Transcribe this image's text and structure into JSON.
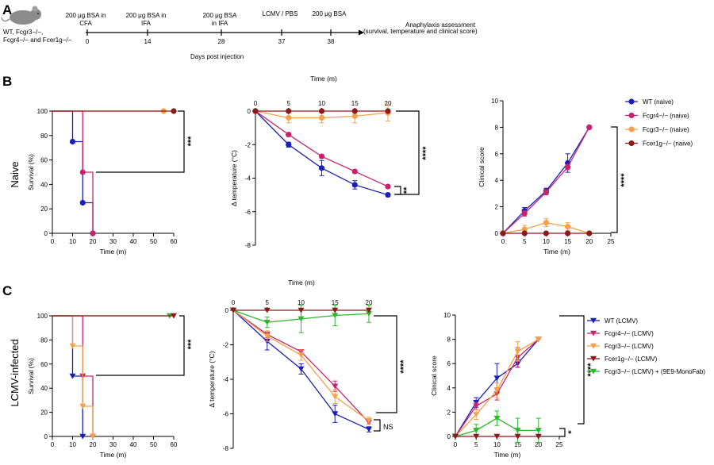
{
  "colors": {
    "wt": "#1a1fb8",
    "fcgr4": "#c8246e",
    "fcgr3": "#f5a04a",
    "fcer1g": "#8b1a1a",
    "monofab": "#2cb82c"
  },
  "panel_a": {
    "letter": "A",
    "mouse_label_1": "WT, Fcgr3−/−,",
    "mouse_label_2": "Fcgr4−/− and Fcer1g−/−",
    "events": [
      {
        "day": "0",
        "label_lines": [
          "200 μg BSA in",
          "CFA"
        ]
      },
      {
        "day": "14",
        "label_lines": [
          "200 μg BSA in",
          "IFA"
        ]
      },
      {
        "day": "28",
        "label_lines": [
          "200 μg BSA",
          "in IFA"
        ]
      },
      {
        "day": "37",
        "label_lines": [
          "LCMV / PBS"
        ]
      },
      {
        "day": "38",
        "label_lines": [
          "200 μg BSA"
        ]
      }
    ],
    "assessment_1": "Anaphylaxis assessment",
    "assessment_2": "(survival, temperature and clinical score)",
    "axis_label": "Days post injection"
  },
  "panel_b": {
    "letter": "B",
    "row_label": "Naive",
    "time_header": "Time (m)",
    "legend": [
      "WT (naive)",
      "Fcgr4−/− (naive)",
      "Fcgr3−/− (naive)",
      "Fcer1g−/− (naive)"
    ],
    "sig_survival": "***",
    "sig_temp_1": "****",
    "sig_temp_2": "**",
    "sig_score": "****"
  },
  "panel_c": {
    "letter": "C",
    "row_label": "LCMV-infected",
    "time_header": "Time (m)",
    "legend": [
      "WT (LCMV)",
      "Fcgr4−/− (LCMV)",
      "Fcgr3−/− (LCMV)",
      "Fcer1g−/− (LCMV)",
      "Fcgr3−/− (LCMV) + (9E9-MonoFab)"
    ],
    "sig_survival": "***",
    "sig_temp_1": "****",
    "sig_temp_2": "NS",
    "sig_score_1": "****",
    "sig_score_2": "*"
  },
  "chart_data": [
    {
      "id": "b_survival",
      "type": "line",
      "xlabel": "Time (m)",
      "ylabel": "Survival (%)",
      "xlim": [
        0,
        60
      ],
      "ylim": [
        0,
        100
      ],
      "xticks": [
        0,
        10,
        20,
        30,
        40,
        50,
        60
      ],
      "yticks": [
        0,
        20,
        40,
        60,
        80,
        100
      ],
      "series": [
        {
          "key": "wt",
          "marker": "circle",
          "step": true,
          "x": [
            0,
            10,
            15,
            20
          ],
          "y": [
            100,
            75,
            25,
            0
          ]
        },
        {
          "key": "fcgr4",
          "marker": "circle",
          "step": true,
          "x": [
            0,
            15,
            20
          ],
          "y": [
            100,
            50,
            0
          ]
        },
        {
          "key": "fcgr3",
          "marker": "circle",
          "step": true,
          "x": [
            0,
            55
          ],
          "y": [
            100,
            100
          ]
        },
        {
          "key": "fcer1g",
          "marker": "circle",
          "step": true,
          "x": [
            0,
            60
          ],
          "y": [
            100,
            100
          ]
        }
      ]
    },
    {
      "id": "b_temp",
      "type": "line",
      "xlabel": "Time (m)",
      "ylabel": "Δ temperature (°C)",
      "xlim": [
        0,
        20
      ],
      "ylim": [
        -8,
        0
      ],
      "xticks": [
        0,
        5,
        10,
        15,
        20
      ],
      "yticks": [
        0,
        -2,
        -4,
        -6,
        -8
      ],
      "series": [
        {
          "key": "wt",
          "marker": "circle",
          "x": [
            0,
            5,
            10,
            15,
            20
          ],
          "y": [
            0,
            -2.0,
            -3.4,
            -4.4,
            -5.0
          ],
          "err": [
            0,
            0.15,
            0.45,
            0.25,
            0.1
          ]
        },
        {
          "key": "fcgr4",
          "marker": "circle",
          "x": [
            0,
            5,
            10,
            15,
            20
          ],
          "y": [
            0,
            -1.4,
            -2.7,
            -3.6,
            -4.5
          ],
          "err": [
            0,
            0.1,
            0.1,
            0.1,
            0.1
          ]
        },
        {
          "key": "fcgr3",
          "marker": "circle",
          "x": [
            0,
            5,
            10,
            15,
            20
          ],
          "y": [
            0,
            -0.4,
            -0.4,
            -0.3,
            -0.1
          ],
          "err": [
            0,
            0.3,
            0.3,
            0.4,
            0.5
          ]
        },
        {
          "key": "fcer1g",
          "marker": "circle",
          "x": [
            0,
            5,
            10,
            15,
            20
          ],
          "y": [
            0,
            0,
            0,
            0,
            0
          ],
          "err": [
            0,
            0,
            0,
            0,
            0
          ]
        }
      ]
    },
    {
      "id": "b_score",
      "type": "line",
      "xlabel": "Time (m)",
      "ylabel": "Clinical score",
      "xlim": [
        0,
        25
      ],
      "ylim": [
        0,
        10
      ],
      "xticks": [
        0,
        5,
        10,
        15,
        20,
        25
      ],
      "yticks": [
        0,
        2,
        4,
        6,
        8,
        10
      ],
      "series": [
        {
          "key": "wt",
          "marker": "circle",
          "x": [
            0,
            5,
            10,
            15,
            20
          ],
          "y": [
            0,
            1.7,
            3.2,
            5.3,
            8.0
          ],
          "err": [
            0,
            0.25,
            0.2,
            0.7,
            0
          ]
        },
        {
          "key": "fcgr4",
          "marker": "circle",
          "x": [
            0,
            5,
            10,
            15,
            20
          ],
          "y": [
            0,
            1.5,
            3.1,
            5.0,
            8.0
          ],
          "err": [
            0,
            0.2,
            0.2,
            0.2,
            0
          ]
        },
        {
          "key": "fcgr3",
          "marker": "circle",
          "x": [
            0,
            5,
            10,
            15,
            20
          ],
          "y": [
            0,
            0.3,
            0.8,
            0.5,
            0
          ],
          "err": [
            0,
            0.3,
            0.3,
            0.3,
            0
          ]
        },
        {
          "key": "fcer1g",
          "marker": "circle",
          "x": [
            0,
            5,
            10,
            15,
            20
          ],
          "y": [
            0,
            0,
            0,
            0,
            0
          ],
          "err": [
            0,
            0,
            0,
            0,
            0
          ]
        }
      ]
    },
    {
      "id": "c_survival",
      "type": "line",
      "xlabel": "Time (m)",
      "ylabel": "Survival (%)",
      "xlim": [
        0,
        60
      ],
      "ylim": [
        0,
        100
      ],
      "xticks": [
        0,
        10,
        20,
        30,
        40,
        50,
        60
      ],
      "yticks": [
        0,
        20,
        40,
        60,
        80,
        100
      ],
      "series": [
        {
          "key": "wt",
          "marker": "tri",
          "step": true,
          "x": [
            0,
            10,
            15
          ],
          "y": [
            100,
            50,
            0
          ]
        },
        {
          "key": "fcgr4",
          "marker": "tri",
          "step": true,
          "x": [
            0,
            15,
            20
          ],
          "y": [
            100,
            50,
            0
          ]
        },
        {
          "key": "fcgr3",
          "marker": "tri",
          "step": true,
          "x": [
            0,
            10,
            15,
            20
          ],
          "y": [
            100,
            75,
            25,
            0
          ]
        },
        {
          "key": "monofab",
          "marker": "tri",
          "step": true,
          "x": [
            0,
            58
          ],
          "y": [
            100,
            100
          ]
        },
        {
          "key": "fcer1g",
          "marker": "tri",
          "step": true,
          "x": [
            0,
            60
          ],
          "y": [
            100,
            100
          ]
        }
      ]
    },
    {
      "id": "c_temp",
      "type": "line",
      "xlabel": "Time (m)",
      "ylabel": "Δ temperature (°C)",
      "xlim": [
        0,
        20
      ],
      "ylim": [
        -8,
        0
      ],
      "xticks": [
        0,
        5,
        10,
        15,
        20
      ],
      "yticks": [
        0,
        -2,
        -4,
        -6,
        -8
      ],
      "series": [
        {
          "key": "wt",
          "marker": "tri",
          "x": [
            0,
            5,
            10,
            15,
            20
          ],
          "y": [
            0,
            -1.8,
            -3.4,
            -6.0,
            -6.9
          ],
          "err": [
            0,
            0.5,
            0.3,
            0.5,
            0.15
          ]
        },
        {
          "key": "fcgr4",
          "marker": "tri",
          "x": [
            0,
            5,
            10,
            15,
            20
          ],
          "y": [
            0,
            -1.4,
            -2.4,
            -4.4,
            -6.5
          ],
          "err": [
            0,
            0.2,
            0.1,
            0.3,
            0.1
          ]
        },
        {
          "key": "fcgr3",
          "marker": "tri",
          "x": [
            0,
            5,
            10,
            15,
            20
          ],
          "y": [
            0,
            -1.5,
            -2.6,
            -5.0,
            -6.4
          ],
          "err": [
            0,
            0.3,
            0.3,
            0.4,
            0.2
          ]
        },
        {
          "key": "monofab",
          "marker": "tri",
          "x": [
            0,
            5,
            10,
            15,
            20
          ],
          "y": [
            0,
            -0.7,
            -0.5,
            -0.3,
            -0.2
          ],
          "err": [
            0,
            0.3,
            0.8,
            0.6,
            0.5
          ]
        },
        {
          "key": "fcer1g",
          "marker": "tri",
          "x": [
            0,
            5,
            10,
            15,
            20
          ],
          "y": [
            0,
            0,
            0,
            0,
            0
          ],
          "err": [
            0,
            0,
            0,
            0,
            0
          ]
        }
      ]
    },
    {
      "id": "c_score",
      "type": "line",
      "xlabel": "Time (m)",
      "ylabel": "Clinical score",
      "xlim": [
        0,
        25
      ],
      "ylim": [
        0,
        10
      ],
      "xticks": [
        0,
        5,
        10,
        15,
        20,
        25
      ],
      "yticks": [
        0,
        2,
        4,
        6,
        8,
        10
      ],
      "series": [
        {
          "key": "wt",
          "marker": "tri",
          "x": [
            0,
            5,
            10,
            15,
            20
          ],
          "y": [
            0,
            2.8,
            4.8,
            6.0,
            8.0
          ],
          "err": [
            0,
            0.4,
            1.2,
            0.3,
            0
          ]
        },
        {
          "key": "fcgr4",
          "marker": "tri",
          "x": [
            0,
            5,
            10,
            15,
            20
          ],
          "y": [
            0,
            2.5,
            3.5,
            6.5,
            8.0
          ],
          "err": [
            0,
            0.3,
            0.5,
            0.8,
            0
          ]
        },
        {
          "key": "fcgr3",
          "marker": "tri",
          "x": [
            0,
            5,
            10,
            15,
            20
          ],
          "y": [
            0,
            1.8,
            3.8,
            7.0,
            8.0
          ],
          "err": [
            0,
            0.4,
            0.6,
            0.8,
            0
          ]
        },
        {
          "key": "monofab",
          "marker": "tri",
          "x": [
            0,
            5,
            10,
            15,
            20
          ],
          "y": [
            0,
            0.5,
            1.5,
            0.5,
            0.5
          ],
          "err": [
            0,
            0.5,
            0.6,
            1.0,
            1.0
          ]
        },
        {
          "key": "fcer1g",
          "marker": "tri",
          "x": [
            0,
            5,
            10,
            15,
            20
          ],
          "y": [
            0,
            0,
            0,
            0,
            0
          ],
          "err": [
            0,
            0,
            0,
            0,
            0
          ]
        }
      ]
    }
  ]
}
